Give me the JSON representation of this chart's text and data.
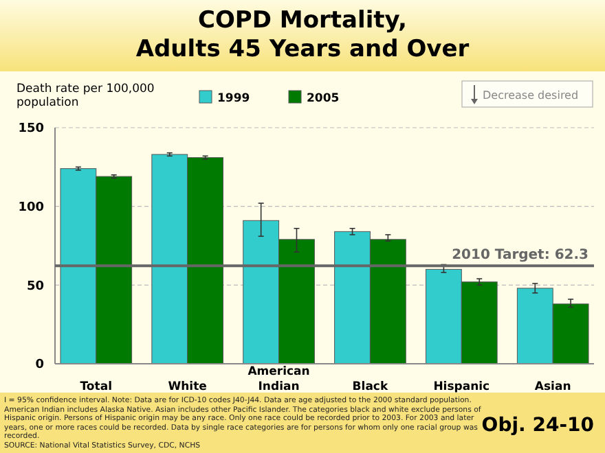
{
  "chart_data": {
    "type": "bar",
    "title": "COPD Mortality,\nAdults 45 Years and Over",
    "ylabel": "Death rate per 100,000\npopulation",
    "categories": [
      "Total",
      "White",
      "American Indian",
      "Black",
      "Hispanic",
      "Asian"
    ],
    "series": [
      {
        "name": "1999",
        "color": "#33cccc",
        "values": [
          124,
          133,
          91,
          84,
          60,
          48
        ],
        "errors": [
          1,
          1,
          [
            81,
            102
          ],
          [
            82,
            86
          ],
          [
            58,
            63
          ],
          [
            45,
            51
          ]
        ]
      },
      {
        "name": "2005",
        "color": "#007a00",
        "values": [
          119,
          131,
          79,
          79,
          52,
          38
        ],
        "errors": [
          1,
          1,
          [
            71,
            86
          ],
          [
            78,
            82
          ],
          [
            50,
            54
          ],
          [
            36,
            41
          ]
        ]
      }
    ],
    "ylim": [
      0,
      150
    ],
    "yticks": [
      0,
      50,
      100,
      150
    ],
    "grid": "y",
    "legend": "top",
    "ref_lines": [
      {
        "axis": "y",
        "value": 62.3,
        "label": "2010 Target: 62.3",
        "color": "#666666"
      }
    ],
    "annotations": [
      "I = 95% confidence interval. Note: Data are for ICD-10 codes J40-J44. Data are age adjusted to the 2000 standard population. American Indian includes Alaska Native. Asian includes other Pacific Islander. The categories black and white exclude persons of Hispanic origin. Persons of Hispanic origin may be any race. Only one race could be recorded prior to 2003. For 2003 and later years, one or more races could be recorded. Data by single race categories are for persons for whom only one racial group was recorded.\nSOURCE: National Vital Statistics Survey, CDC, NCHS",
      "Obj. 24-10",
      "Decrease desired"
    ]
  }
}
